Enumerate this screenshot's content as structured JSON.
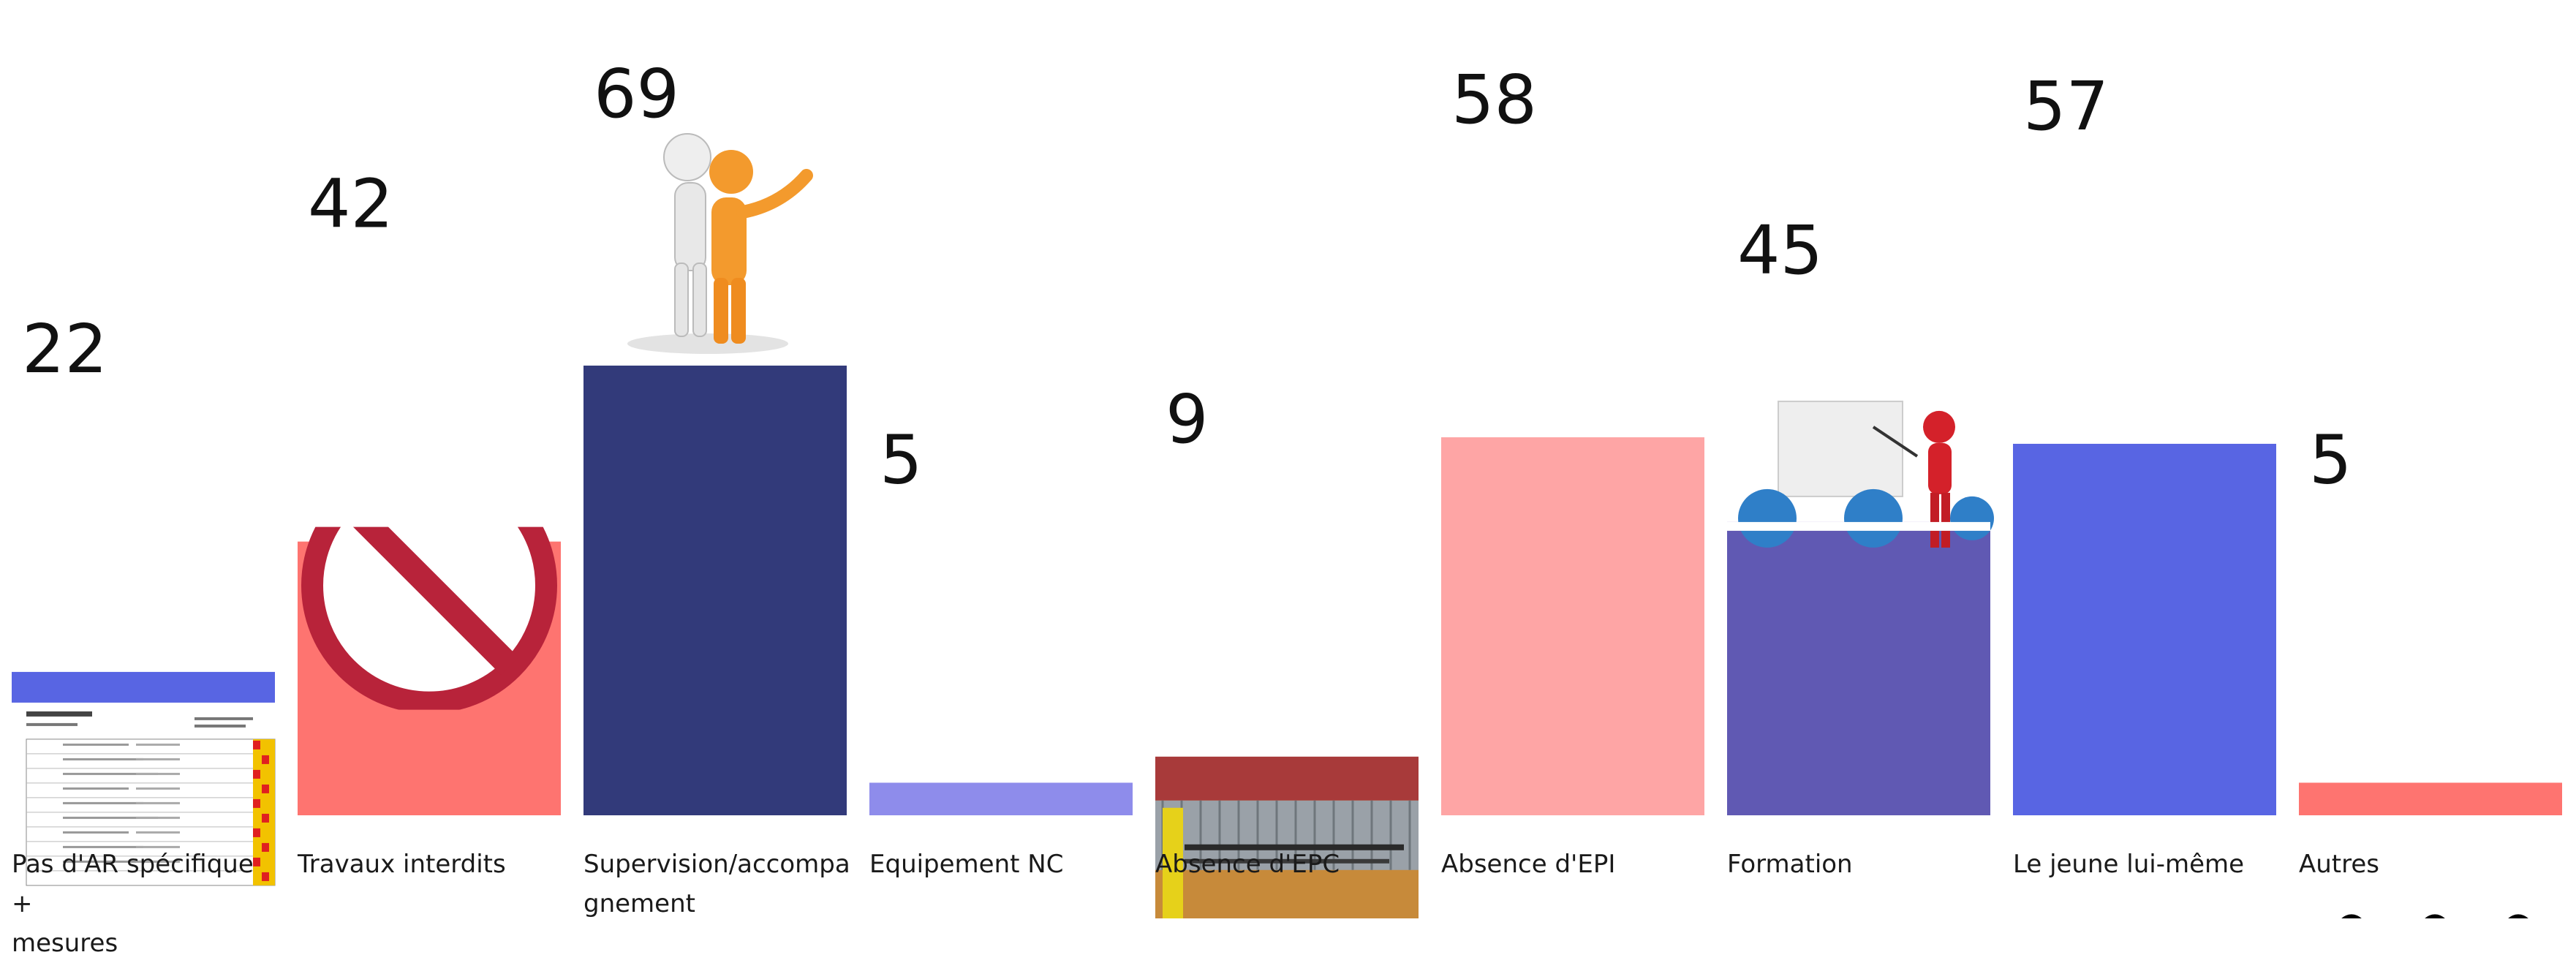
{
  "chart_data": {
    "type": "bar",
    "title": "",
    "xlabel": "",
    "ylabel": "",
    "ylim": [
      0,
      69
    ],
    "grid": false,
    "categories": [
      "Pas d'AR spécifique + mesures",
      "Travaux interdits",
      "Supervision/accompagnement",
      "Equipement NC",
      "Absence d'EPC",
      "Absence d'EPI",
      "Formation",
      "Le jeune lui-même",
      "Autres"
    ],
    "category_display": [
      [
        "Pas d'AR spécifique +",
        "mesures"
      ],
      [
        "Travaux interdits"
      ],
      [
        "Supervision/accompa",
        "gnement"
      ],
      [
        "Equipement NC"
      ],
      [
        "Absence d'EPC"
      ],
      [
        "Absence d'EPI"
      ],
      [
        "Formation"
      ],
      [
        "Le jeune lui-même"
      ],
      [
        "Autres"
      ]
    ],
    "values": [
      22,
      42,
      69,
      5,
      9,
      58,
      45,
      57,
      5
    ],
    "colors": [
      "#5865e3",
      "#fe7470",
      "#323a7a",
      "#8e8ceb",
      "#a83a3a",
      "#fea5a5",
      "#6059b3",
      "#5865e3",
      "#fe7470"
    ],
    "images": [
      "risk-assessment-table-image",
      "prohibited-sign-image",
      "supervising-figures-image",
      "red-dash-image",
      "safety-barrier-photo",
      "",
      "training-presentation-image",
      "",
      "ellipsis-dots-image"
    ]
  }
}
